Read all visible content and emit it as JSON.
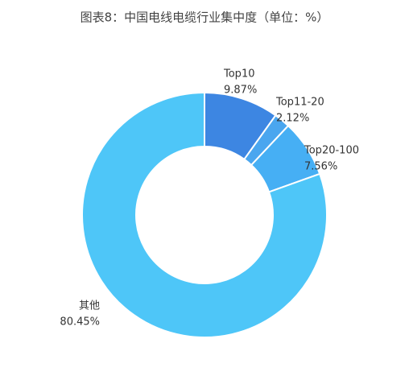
{
  "chart_data": {
    "type": "donut",
    "title": "图表8：中国电线电缆行业集中度（单位：%）",
    "categories": [
      "Top10",
      "Top11-20",
      "Top20-100",
      "其他"
    ],
    "values": [
      9.87,
      2.12,
      7.56,
      80.45
    ],
    "value_labels": [
      "9.87%",
      "2.12%",
      "7.56%",
      "80.45%"
    ],
    "colors": [
      "#3d86e2",
      "#4aa6ef",
      "#46aff4",
      "#4ec6f8"
    ]
  }
}
